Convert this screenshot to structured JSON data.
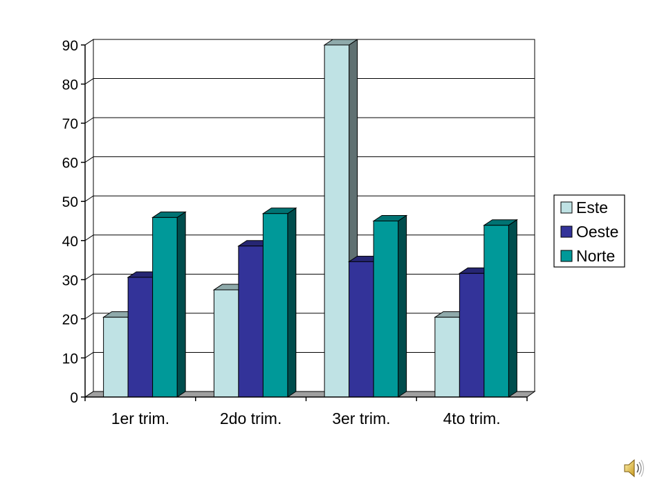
{
  "chart_data": {
    "type": "bar",
    "categories": [
      "1er trim.",
      "2do trim.",
      "3er trim.",
      "4to trim."
    ],
    "series": [
      {
        "name": "Este",
        "values": [
          20.4,
          27.4,
          90,
          20.4
        ],
        "color": "#bfe2e4"
      },
      {
        "name": "Oeste",
        "values": [
          30.6,
          38.6,
          34.6,
          31.6
        ],
        "color": "#333399"
      },
      {
        "name": "Norte",
        "values": [
          45.9,
          46.9,
          45,
          43.9
        ],
        "color": "#009999"
      }
    ],
    "yticks": [
      0,
      10,
      20,
      30,
      40,
      50,
      60,
      70,
      80,
      90
    ],
    "ylim": [
      0,
      90
    ],
    "grid": true,
    "three_d": true,
    "legend_position": "right"
  },
  "icons": {
    "speaker": "speaker-icon"
  }
}
